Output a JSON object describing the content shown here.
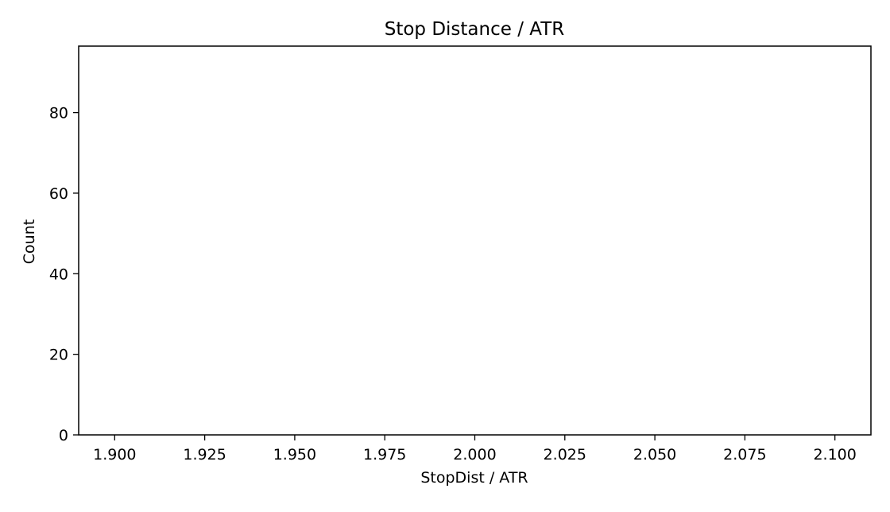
{
  "chart_data": {
    "type": "bar",
    "title": "Stop Distance / ATR",
    "xlabel": "StopDist / ATR",
    "ylabel": "Count",
    "xlim": [
      1.89,
      2.11
    ],
    "ylim": [
      0,
      96.5
    ],
    "xticks": [
      1.9,
      1.925,
      1.95,
      1.975,
      2.0,
      2.025,
      2.05,
      2.075,
      2.1
    ],
    "xtick_labels": [
      "1.900",
      "1.925",
      "1.950",
      "1.975",
      "2.000",
      "2.025",
      "2.050",
      "2.075",
      "2.100"
    ],
    "yticks": [
      0,
      20,
      40,
      60,
      80
    ],
    "ytick_labels": [
      "0",
      "20",
      "40",
      "60",
      "80"
    ],
    "grid": false,
    "bars": [],
    "colors": {
      "axis": "#000000",
      "background": "#ffffff"
    }
  }
}
